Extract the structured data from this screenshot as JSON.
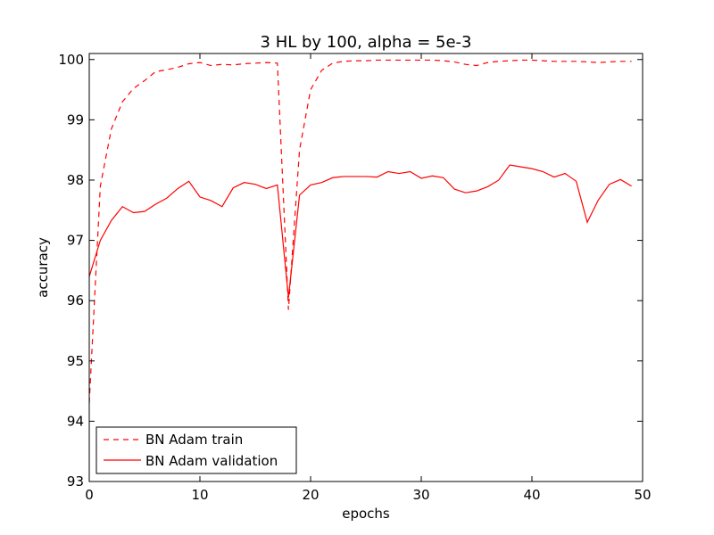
{
  "chart_data": {
    "type": "line",
    "title": "3 HL by 100, alpha = 5e-3",
    "xlabel": "epochs",
    "ylabel": "accuracy",
    "xlim": [
      0,
      50
    ],
    "ylim": [
      93,
      100.1
    ],
    "xticks": [
      0,
      10,
      20,
      30,
      40,
      50
    ],
    "yticks": [
      93,
      94,
      95,
      96,
      97,
      98,
      99,
      100
    ],
    "grid": false,
    "legend_position": "lower-left",
    "x": [
      0,
      1,
      2,
      3,
      4,
      5,
      6,
      7,
      8,
      9,
      10,
      11,
      12,
      13,
      14,
      15,
      16,
      17,
      18,
      19,
      20,
      21,
      22,
      23,
      24,
      25,
      26,
      27,
      28,
      29,
      30,
      31,
      32,
      33,
      34,
      35,
      36,
      37,
      38,
      39,
      40,
      41,
      42,
      43,
      44,
      45,
      46,
      47,
      48,
      49
    ],
    "series": [
      {
        "name": "BN Adam train",
        "color": "#ff0000",
        "style": "dashed",
        "values": [
          94.3,
          97.9,
          98.85,
          99.3,
          99.52,
          99.65,
          99.8,
          99.83,
          99.87,
          99.93,
          99.95,
          99.9,
          99.92,
          99.91,
          99.93,
          99.94,
          99.95,
          99.94,
          95.85,
          98.5,
          99.5,
          99.82,
          99.94,
          99.97,
          99.98,
          99.98,
          99.99,
          99.99,
          99.99,
          99.99,
          99.99,
          99.99,
          99.98,
          99.96,
          99.92,
          99.9,
          99.95,
          99.97,
          99.98,
          99.99,
          99.99,
          99.98,
          99.97,
          99.97,
          99.97,
          99.96,
          99.95,
          99.96,
          99.97,
          99.97
        ]
      },
      {
        "name": "BN Adam validation",
        "color": "#ff0000",
        "style": "solid",
        "values": [
          96.4,
          97.0,
          97.33,
          97.56,
          97.46,
          97.48,
          97.6,
          97.7,
          97.86,
          97.98,
          97.72,
          97.66,
          97.56,
          97.87,
          97.96,
          97.93,
          97.86,
          97.92,
          96.05,
          97.75,
          97.92,
          97.96,
          98.04,
          98.06,
          98.06,
          98.06,
          98.05,
          98.14,
          98.11,
          98.14,
          98.03,
          98.07,
          98.04,
          97.85,
          97.79,
          97.82,
          97.89,
          98.0,
          98.25,
          98.22,
          98.19,
          98.14,
          98.05,
          98.11,
          97.98,
          97.3,
          97.67,
          97.93,
          98.01,
          97.9
        ]
      }
    ]
  }
}
